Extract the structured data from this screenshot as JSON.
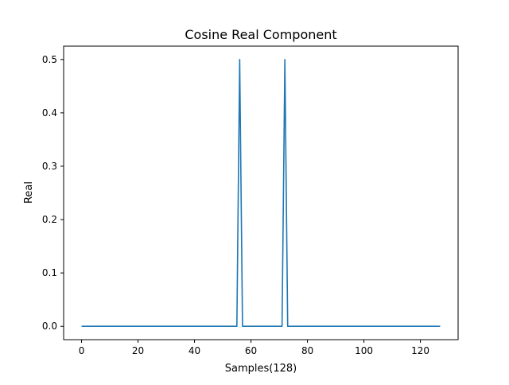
{
  "chart_data": {
    "type": "line",
    "title": "Cosine Real Component",
    "xlabel": "Samples(128)",
    "ylabel": "Real",
    "xlim": [
      -6.35,
      133.35
    ],
    "ylim": [
      -0.025,
      0.525
    ],
    "xticks": [
      0,
      20,
      40,
      60,
      80,
      100,
      120
    ],
    "yticks": [
      0.0,
      0.1,
      0.2,
      0.3,
      0.4,
      0.5
    ],
    "xtick_labels": [
      "0",
      "20",
      "40",
      "60",
      "80",
      "100",
      "120"
    ],
    "ytick_labels": [
      "0.0",
      "0.1",
      "0.2",
      "0.3",
      "0.4",
      "0.5"
    ],
    "grid": false,
    "series": [
      {
        "color": "#1f77b4",
        "x": [
          0,
          55,
          56,
          57,
          71,
          72,
          73,
          127
        ],
        "y": [
          0.0,
          0.0,
          0.5,
          0.0,
          0.0,
          0.5,
          0.0,
          0.0
        ]
      }
    ]
  }
}
